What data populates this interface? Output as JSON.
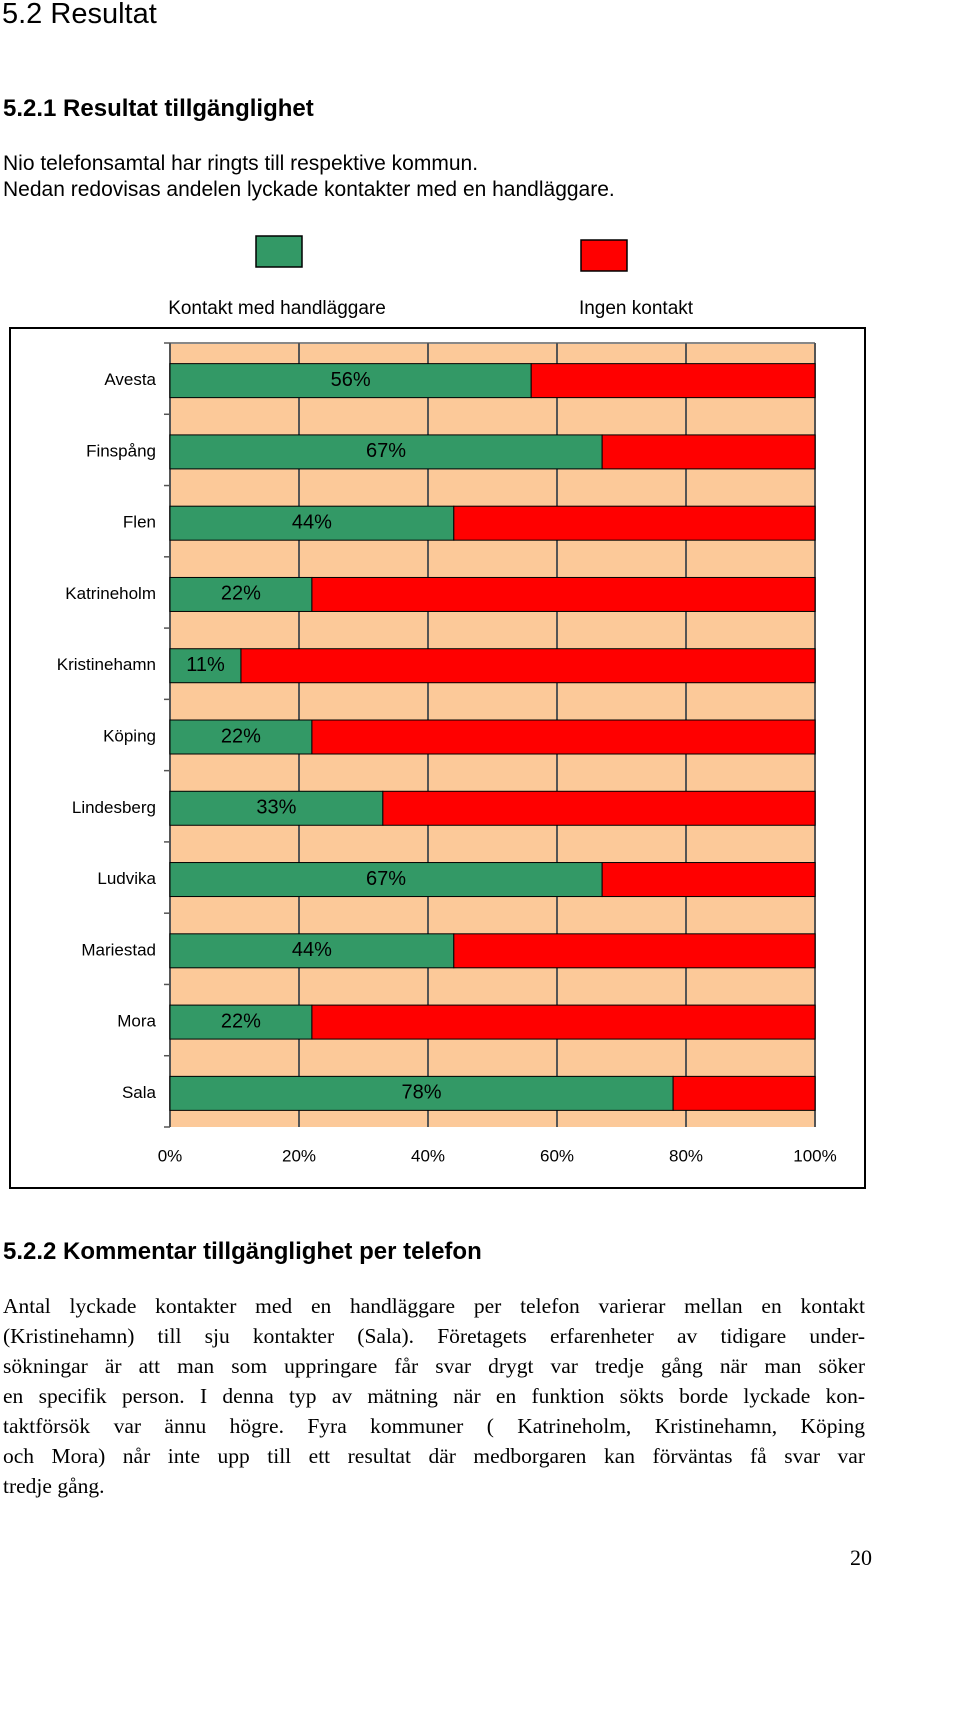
{
  "title": "5.2 Resultat",
  "section_1": {
    "heading": "5.2.1 Resultat tillgänglighet",
    "lines": [
      "Nio telefonsamtal har ringts till respektive kommun.",
      "Nedan redovisas andelen lyckade kontakter med en handläggare."
    ]
  },
  "chart_data": {
    "type": "stacked-bar-horizontal",
    "categories": [
      "Avesta",
      "Finspång",
      "Flen",
      "Katrineholm",
      "Kristinehamn",
      "Köping",
      "Lindesberg",
      "Ludvika",
      "Mariestad",
      "Mora",
      "Sala"
    ],
    "series": [
      {
        "name": "Kontakt med handläggare",
        "color": "#339966",
        "values": [
          56,
          67,
          44,
          22,
          11,
          22,
          33,
          67,
          44,
          22,
          78
        ],
        "value_labels": [
          "56%",
          "67%",
          "44%",
          "22%",
          "11%",
          "22%",
          "33%",
          "67%",
          "44%",
          "22%",
          "78%"
        ]
      },
      {
        "name": "Ingen kontakt",
        "color": "#ff0000",
        "values": [
          44,
          33,
          56,
          78,
          89,
          78,
          67,
          33,
          56,
          78,
          22
        ]
      }
    ],
    "xlim": [
      0,
      100
    ],
    "xticks": [
      {
        "value": 0,
        "label": "0%"
      },
      {
        "value": 20,
        "label": "20%"
      },
      {
        "value": 40,
        "label": "40%"
      },
      {
        "value": 60,
        "label": "60%"
      },
      {
        "value": 80,
        "label": "80%"
      },
      {
        "value": 100,
        "label": "100%"
      }
    ],
    "grid": true,
    "plot_background": "#fcc999"
  },
  "section_2": {
    "heading": "5.2.2 Kommentar tillgänglighet per telefon",
    "lines": [
      "Antal lyckade kontakter med en handläggare per telefon varierar mellan en kontakt",
      "(Kristinehamn) till sju kontakter (Sala). Företagets erfarenheter av tidigare under-",
      "sökningar är att man som uppringare får svar drygt var tredje gång när man söker",
      "en specifik person. I denna typ av mätning när en funktion sökts borde lyckade kon-",
      "taktförsök var ännu högre. Fyra kommuner ( Katrineholm, Kristinehamn, Köping",
      "och Mora) når inte upp till ett resultat där medborgaren kan förväntas få svar var",
      "tredje gång."
    ]
  },
  "page_number": "20"
}
